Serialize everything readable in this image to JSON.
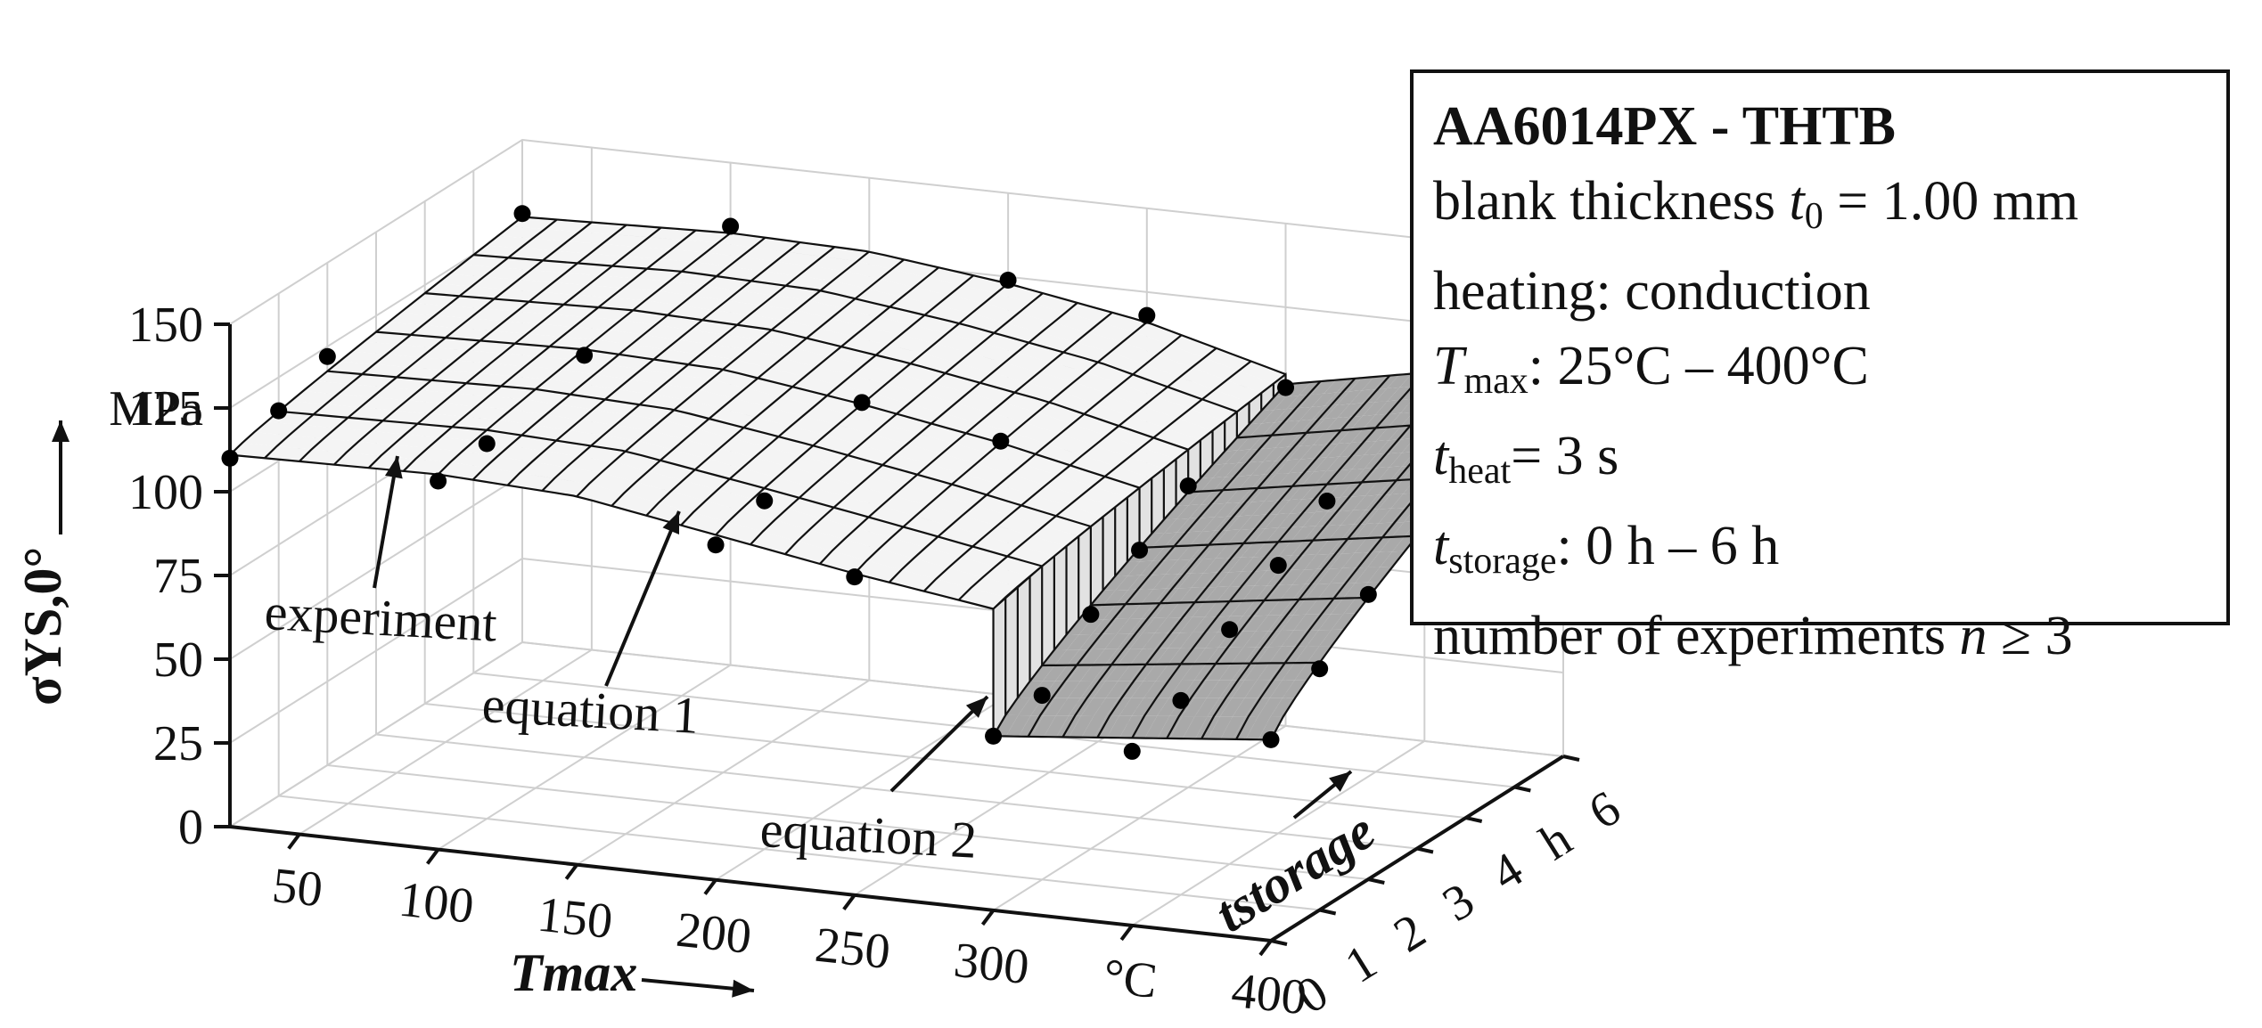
{
  "chart_data": {
    "type": "surface",
    "zlabel": "σYS,0°",
    "zunit": "MPa",
    "zticks": [
      "0",
      "25",
      "50",
      "75",
      "100",
      "125",
      "150"
    ],
    "zlim": [
      0,
      150
    ],
    "xlabel": "Tmax",
    "xunit": "°C",
    "xticks": [
      "50",
      "100",
      "150",
      "200",
      "250",
      "300",
      "400"
    ],
    "xlim": [
      25,
      400
    ],
    "ylabel": "tstorage",
    "yunit": "h",
    "yticks": [
      "0",
      "1",
      "2",
      "3",
      "4",
      "6"
    ],
    "ylim": [
      0,
      6
    ],
    "grid": true,
    "annotations": [
      "experiment",
      "equation 1",
      "equation 2"
    ],
    "equation_1": {
      "T_range": [
        25,
        300
      ],
      "t_range": [
        0,
        6
      ],
      "sigma_at_t0": [
        [
          25,
          111
        ],
        [
          100,
          112
        ],
        [
          150,
          110
        ],
        [
          200,
          103
        ],
        [
          250,
          96
        ],
        [
          300,
          90
        ]
      ],
      "sigma_at_t6": [
        [
          25,
          127
        ],
        [
          100,
          129
        ],
        [
          150,
          128
        ],
        [
          200,
          123
        ],
        [
          250,
          116
        ],
        [
          300,
          105
        ]
      ]
    },
    "equation_2": {
      "T_range": [
        300,
        400
      ],
      "t_range": [
        0,
        6
      ],
      "sigma_at_t0": [
        [
          300,
          52
        ],
        [
          400,
          60
        ]
      ],
      "sigma_at_t6": [
        [
          300,
          102
        ],
        [
          400,
          118
        ]
      ]
    },
    "experiments": [
      {
        "T": 25,
        "t": 0,
        "sigma": 110
      },
      {
        "T": 25,
        "t": 1,
        "sigma": 115
      },
      {
        "T": 25,
        "t": 2,
        "sigma": 122
      },
      {
        "T": 25,
        "t": 6,
        "sigma": 128
      },
      {
        "T": 100,
        "t": 0,
        "sigma": 110
      },
      {
        "T": 100,
        "t": 1,
        "sigma": 112
      },
      {
        "T": 100,
        "t": 3,
        "sigma": 120
      },
      {
        "T": 100,
        "t": 6,
        "sigma": 131
      },
      {
        "T": 200,
        "t": 0,
        "sigma": 100
      },
      {
        "T": 200,
        "t": 1,
        "sigma": 104
      },
      {
        "T": 200,
        "t": 3,
        "sigma": 115
      },
      {
        "T": 200,
        "t": 6,
        "sigma": 124
      },
      {
        "T": 250,
        "t": 0,
        "sigma": 95
      },
      {
        "T": 250,
        "t": 3,
        "sigma": 108
      },
      {
        "T": 250,
        "t": 6,
        "sigma": 118
      },
      {
        "T": 300,
        "t": 0,
        "sigma": 52
      },
      {
        "T": 300,
        "t": 1,
        "sigma": 55
      },
      {
        "T": 300,
        "t": 2,
        "sigma": 70
      },
      {
        "T": 300,
        "t": 3,
        "sigma": 80
      },
      {
        "T": 300,
        "t": 4,
        "sigma": 90
      },
      {
        "T": 300,
        "t": 6,
        "sigma": 101
      },
      {
        "T": 350,
        "t": 0,
        "sigma": 52
      },
      {
        "T": 350,
        "t": 1,
        "sigma": 58
      },
      {
        "T": 350,
        "t": 2,
        "sigma": 70
      },
      {
        "T": 350,
        "t": 3,
        "sigma": 80
      },
      {
        "T": 350,
        "t": 4,
        "sigma": 90
      },
      {
        "T": 350,
        "t": 6,
        "sigma": 110
      },
      {
        "T": 400,
        "t": 0,
        "sigma": 60
      },
      {
        "T": 400,
        "t": 1,
        "sigma": 72
      },
      {
        "T": 400,
        "t": 2,
        "sigma": 85
      },
      {
        "T": 400,
        "t": 6,
        "sigma": 118
      }
    ]
  },
  "info_box": {
    "title": "AA6014PX - THTB",
    "thickness_prefix": "blank thickness ",
    "thickness_var": "t",
    "thickness_sub": "0",
    "thickness_value": " = 1.00 mm",
    "heating": "heating: conduction",
    "tmax_var": "T",
    "tmax_sub": "max",
    "tmax_value": ": 25°C – 400°C",
    "theat_var": "t",
    "theat_sub": "heat",
    "theat_value": "= 3 s",
    "tstorage_var": "t",
    "tstorage_sub": "storage",
    "tstorage_value": ": 0 h – 6 h",
    "experiments_prefix": "number of experiments ",
    "experiments_var": "n",
    "experiments_value": " ≥ 3"
  },
  "colors": {
    "surface_eq1": "#f4f4f4",
    "surface_eq1_step": "#e2e2e2",
    "surface_eq2": "#a9a9a9",
    "mesh": "#111111",
    "grid": "#cfcfcf"
  }
}
